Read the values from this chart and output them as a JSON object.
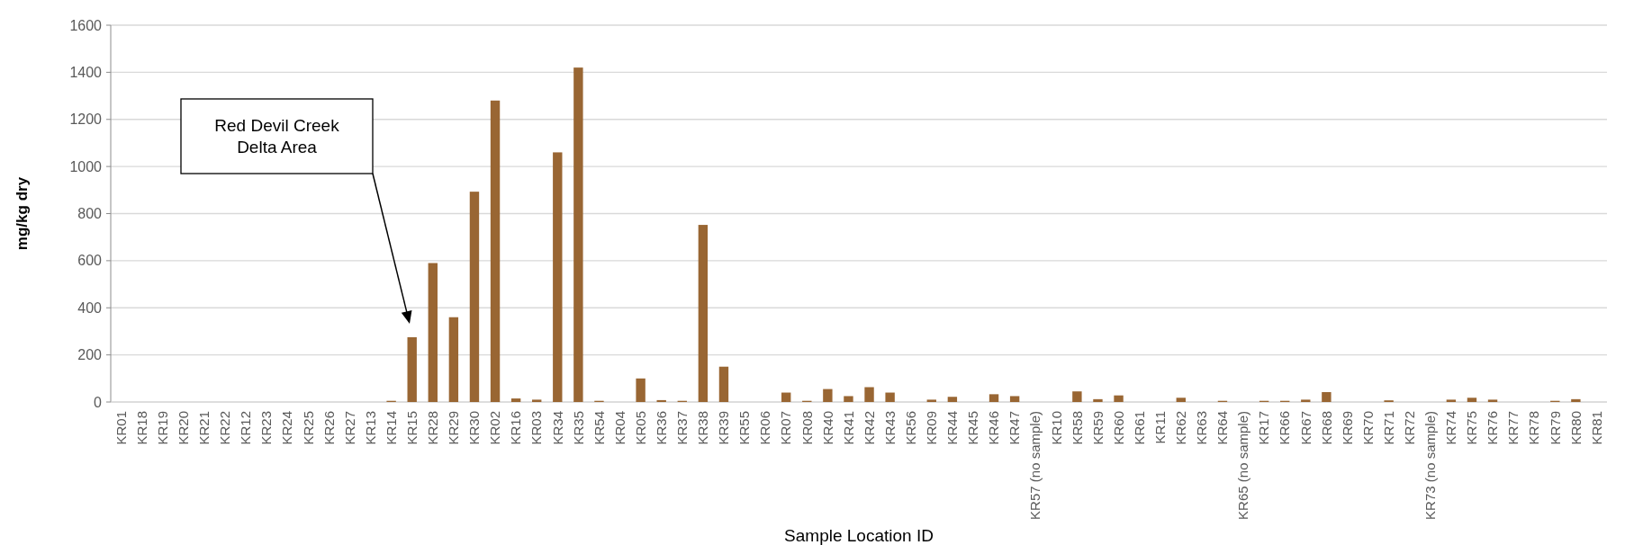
{
  "chart_data": {
    "type": "bar",
    "xlabel": "Sample Location ID",
    "ylabel": "mg/kg dry",
    "categories": [
      "KR01",
      "KR18",
      "KR19",
      "KR20",
      "KR21",
      "KR22",
      "KR12",
      "KR23",
      "KR24",
      "KR25",
      "KR26",
      "KR27",
      "KR13",
      "KR14",
      "KR15",
      "KR28",
      "KR29",
      "KR30",
      "KR02",
      "KR16",
      "KR03",
      "KR34",
      "KR35",
      "KR54",
      "KR04",
      "KR05",
      "KR36",
      "KR37",
      "KR38",
      "KR39",
      "KR55",
      "KR06",
      "KR07",
      "KR08",
      "KR40",
      "KR41",
      "KR42",
      "KR43",
      "KR56",
      "KR09",
      "KR44",
      "KR45",
      "KR46",
      "KR47",
      "KR57 (no sample)",
      "KR10",
      "KR58",
      "KR59",
      "KR60",
      "KR61",
      "KR11",
      "KR62",
      "KR63",
      "KR64",
      "KR65 (no sample)",
      "KR17",
      "KR66",
      "KR67",
      "KR68",
      "KR69",
      "KR70",
      "KR71",
      "KR72",
      "KR73 (no sample)",
      "KR74",
      "KR75",
      "KR76",
      "KR77",
      "KR78",
      "KR79",
      "KR80",
      "KR81"
    ],
    "values": [
      0,
      0,
      0,
      0,
      0,
      0,
      0,
      0,
      0,
      0,
      0,
      0,
      0,
      5,
      275,
      590,
      360,
      893,
      1280,
      15,
      10,
      1060,
      1420,
      5,
      0,
      100,
      8,
      5,
      752,
      150,
      0,
      0,
      40,
      5,
      55,
      25,
      63,
      40,
      0,
      10,
      22,
      0,
      33,
      25,
      null,
      0,
      45,
      12,
      28,
      0,
      0,
      18,
      0,
      5,
      null,
      5,
      5,
      10,
      42,
      0,
      0,
      7,
      0,
      null,
      10,
      18,
      10,
      0,
      0,
      5,
      12,
      0
    ],
    "color": "#996633",
    "ylim": [
      0,
      1600
    ],
    "yticks": [
      0,
      200,
      400,
      600,
      800,
      1000,
      1200,
      1400,
      1600
    ],
    "grid": "y",
    "annotations": [
      "Red Devil Creek Delta Area"
    ]
  }
}
